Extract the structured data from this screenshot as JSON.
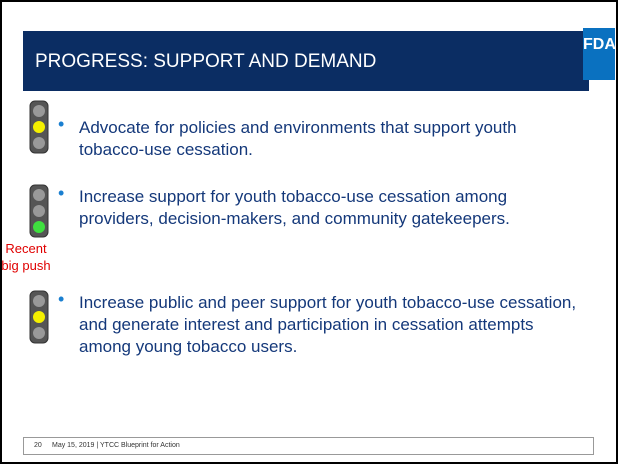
{
  "header": {
    "title": "PROGRESS: SUPPORT AND DEMAND",
    "logo": "FDA"
  },
  "bullets": [
    {
      "text": "Advocate for policies and environments that support youth tobacco-use cessation."
    },
    {
      "text": "Increase support for youth tobacco-use cessation among providers, decision-makers, and community gatekeepers.",
      "note": "Recent big push"
    },
    {
      "text": "Increase public and peer support for youth tobacco-use cessation, and generate interest and participation in cessation attempts among young tobacco users."
    }
  ],
  "footer": {
    "page": "20",
    "text": "May 15, 2019 | YTCC Blueprint for Action"
  }
}
